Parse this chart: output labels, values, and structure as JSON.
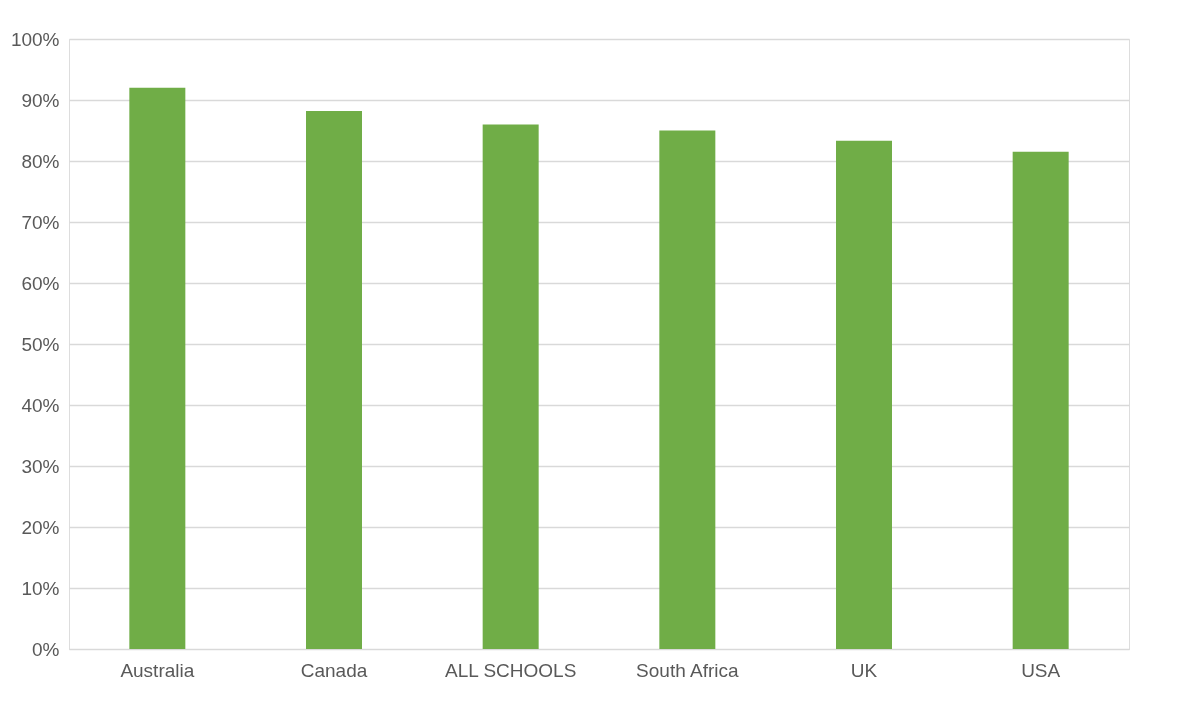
{
  "chart_data": {
    "type": "bar",
    "categories": [
      "Australia",
      "Canada",
      "ALL SCHOOLS",
      "South Africa",
      "UK",
      "USA"
    ],
    "values": [
      92,
      88.2,
      86,
      85,
      83.3,
      81.5
    ],
    "color": "#70ad47",
    "ylim": [
      0,
      100
    ],
    "yticks": [
      {
        "value": 0,
        "label": "0%"
      },
      {
        "value": 10,
        "label": "10%"
      },
      {
        "value": 20,
        "label": "20%"
      },
      {
        "value": 30,
        "label": "30%"
      },
      {
        "value": 40,
        "label": "40%"
      },
      {
        "value": 50,
        "label": "50%"
      },
      {
        "value": 60,
        "label": "60%"
      },
      {
        "value": 70,
        "label": "70%"
      },
      {
        "value": 80,
        "label": "80%"
      },
      {
        "value": 90,
        "label": "90%"
      },
      {
        "value": 100,
        "label": "100%"
      }
    ],
    "grid": "y"
  }
}
